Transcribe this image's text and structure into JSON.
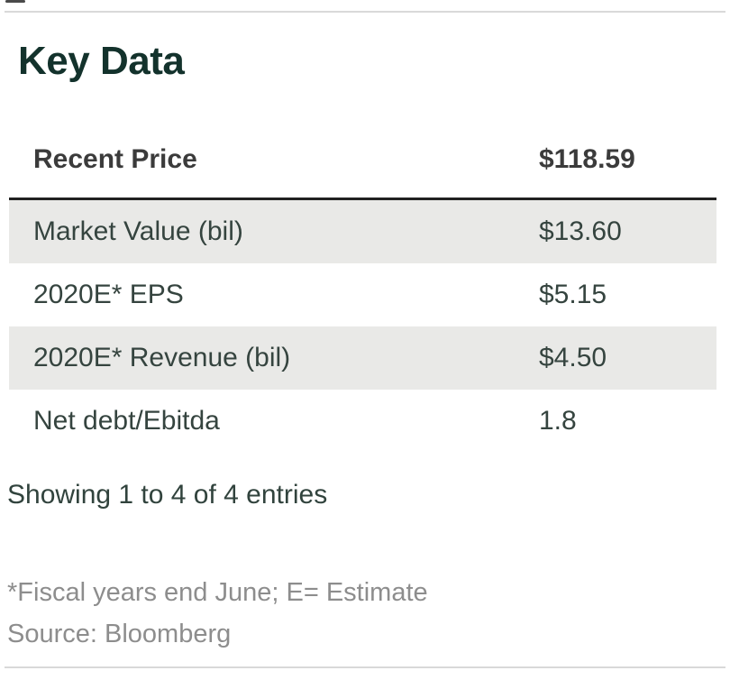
{
  "page": {
    "title": "Key Data"
  },
  "table": {
    "header": {
      "label": "Recent Price",
      "value": "$118.59"
    },
    "rows": [
      {
        "label": "Market Value (bil)",
        "value": "$13.60"
      },
      {
        "label": "2020E* EPS",
        "value": "$5.15"
      },
      {
        "label": "2020E* Revenue (bil)",
        "value": "$4.50"
      },
      {
        "label": "Net debt/Ebitda",
        "value": "1.8"
      }
    ],
    "status": "Showing 1 to 4 of 4 entries"
  },
  "footnotes": {
    "line1": "*Fiscal years end June; E= Estimate",
    "line2": "Source: Bloomberg"
  },
  "colors": {
    "title_text": "#13322c",
    "header_text": "#3b3b3b",
    "row_text": "#35443f",
    "row_alt_background": "#e9e9e7",
    "dark_separator": "#212121",
    "light_rule": "#d9d9d9",
    "footnote_text": "#8d8d8d"
  }
}
